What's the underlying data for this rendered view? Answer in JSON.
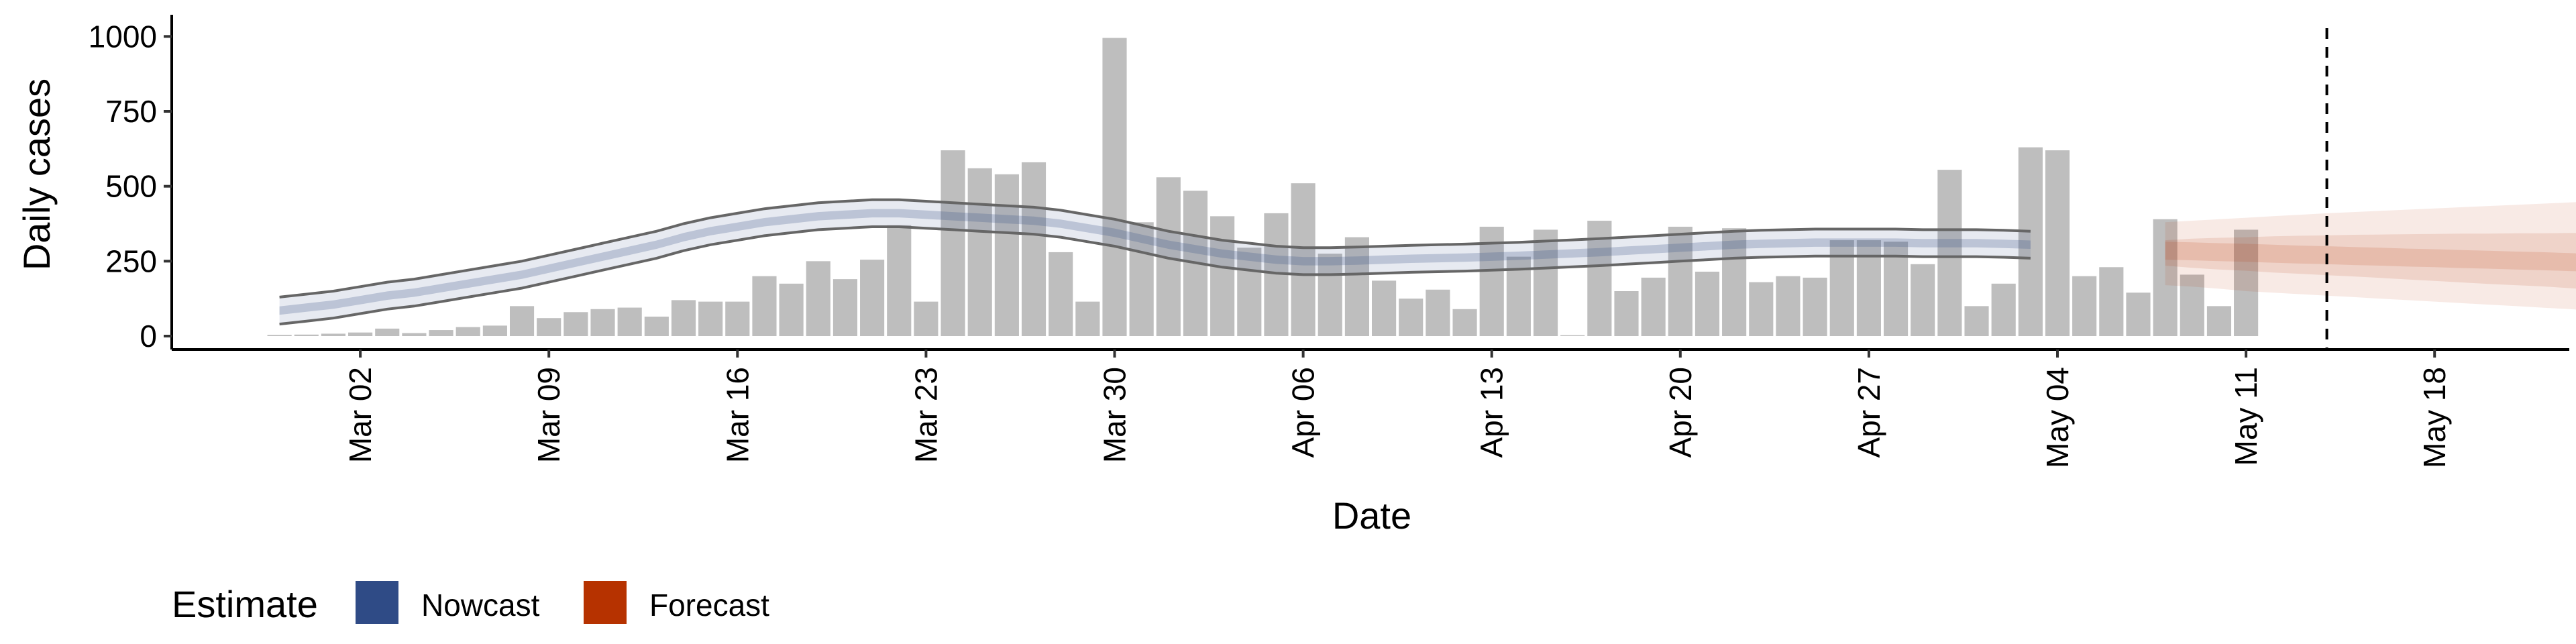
{
  "chart_data": {
    "type": "bar",
    "ylabel": "Daily cases",
    "xlabel": "Date",
    "ylim": [
      0,
      1050
    ],
    "xlim": [
      "2020-02-24",
      "2020-05-23"
    ],
    "yticks": [
      0,
      250,
      500,
      750,
      1000
    ],
    "xticks": [
      {
        "date": "2020-03-02",
        "label": "Mar 02"
      },
      {
        "date": "2020-03-09",
        "label": "Mar 09"
      },
      {
        "date": "2020-03-16",
        "label": "Mar 16"
      },
      {
        "date": "2020-03-23",
        "label": "Mar 23"
      },
      {
        "date": "2020-03-30",
        "label": "Mar 30"
      },
      {
        "date": "2020-04-06",
        "label": "Apr 06"
      },
      {
        "date": "2020-04-13",
        "label": "Apr 13"
      },
      {
        "date": "2020-04-20",
        "label": "Apr 20"
      },
      {
        "date": "2020-04-27",
        "label": "Apr 27"
      },
      {
        "date": "2020-05-04",
        "label": "May 04"
      },
      {
        "date": "2020-05-11",
        "label": "May 11"
      },
      {
        "date": "2020-05-18",
        "label": "May 18"
      }
    ],
    "bars": {
      "start_date": "2020-02-28",
      "values": [
        4,
        5,
        8,
        12,
        25,
        10,
        20,
        30,
        35,
        100,
        60,
        80,
        90,
        95,
        65,
        120,
        115,
        115,
        200,
        175,
        250,
        190,
        255,
        370,
        115,
        620,
        560,
        540,
        580,
        280,
        115,
        995,
        380,
        530,
        485,
        400,
        295,
        410,
        510,
        275,
        330,
        185,
        125,
        155,
        90,
        365,
        265,
        355,
        3,
        385,
        150,
        195,
        365,
        215,
        360,
        180,
        200,
        195,
        320,
        320,
        315,
        240,
        555,
        100,
        175,
        630,
        620,
        200,
        230,
        145,
        390,
        205,
        100,
        355
      ],
      "color": "#bebebe"
    },
    "nowcast": {
      "start_date": "2020-02-28",
      "values": [
        85,
        95,
        105,
        120,
        135,
        145,
        160,
        175,
        190,
        205,
        225,
        245,
        265,
        285,
        305,
        330,
        350,
        365,
        380,
        390,
        400,
        405,
        410,
        410,
        405,
        400,
        395,
        390,
        385,
        375,
        360,
        345,
        325,
        305,
        290,
        275,
        265,
        255,
        250,
        250,
        252,
        255,
        258,
        260,
        262,
        265,
        268,
        272,
        276,
        280,
        285,
        290,
        295,
        300,
        305,
        308,
        310,
        312,
        312,
        312,
        312,
        310,
        310,
        310,
        308,
        305
      ],
      "inner_band": 14,
      "outer_band": [
        45,
        0
      ],
      "color": "#3c5488"
    },
    "forecast": {
      "start_date": "2020-05-08",
      "values": [
        285,
        283,
        280,
        278,
        275,
        272,
        270,
        267,
        265,
        262,
        260,
        257,
        255,
        252,
        250,
        247,
        244
      ],
      "inner_lower": [
        235,
        228,
        222,
        218,
        212,
        208,
        203,
        199,
        194,
        189,
        184,
        179,
        174,
        170,
        166,
        160,
        155
      ],
      "inner_upper": [
        320,
        325,
        328,
        330,
        333,
        335,
        336,
        338,
        339,
        340,
        341,
        342,
        342,
        343,
        343,
        344,
        345
      ],
      "outer_lower": [
        170,
        165,
        158,
        150,
        145,
        140,
        135,
        130,
        125,
        120,
        115,
        110,
        105,
        100,
        95,
        90,
        85
      ],
      "outer_upper": [
        380,
        385,
        390,
        395,
        400,
        405,
        410,
        414,
        418,
        422,
        426,
        430,
        434,
        438,
        442,
        446,
        450
      ],
      "color": "#b83500"
    },
    "vline_date": "2020-05-14",
    "legend": {
      "position": "bottom-left",
      "title": "Estimate",
      "items": [
        {
          "label": "Nowcast",
          "color": "#2f4b86"
        },
        {
          "label": "Forecast",
          "color": "#b63200"
        }
      ]
    }
  }
}
